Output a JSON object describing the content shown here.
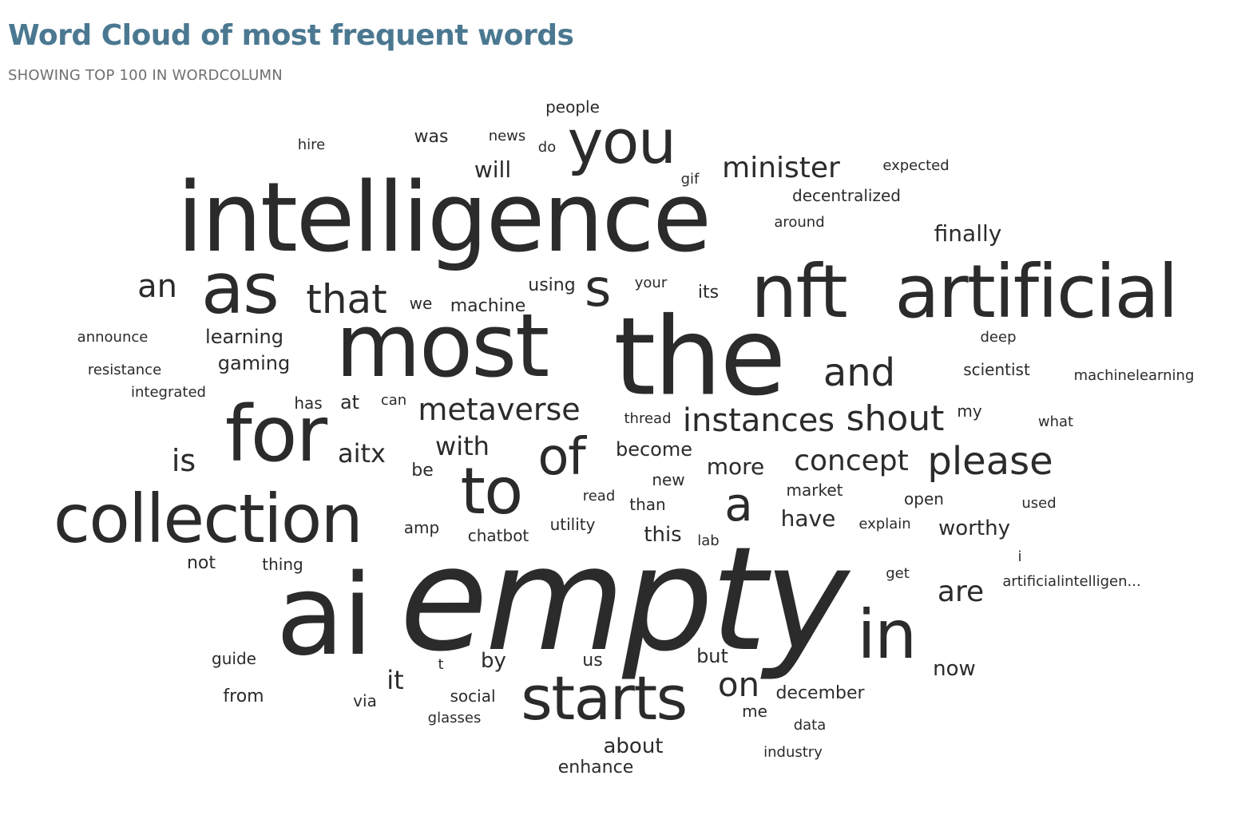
{
  "header": {
    "title": "Word Cloud of most frequent words",
    "subtitle": "SHOWING TOP 100 IN WORDCOLUMN"
  },
  "colors": {
    "title": "#4b7891",
    "subtitle": "#6f6f6f",
    "word": "#2b2b2b"
  },
  "chart_data": {
    "type": "wordcloud",
    "title": "Word Cloud of most frequent words",
    "subtitle": "SHOWING TOP 100 IN WORDCOLUMN",
    "words": [
      {
        "text": "empty",
        "rank": 1,
        "italic": true
      },
      {
        "text": "intelligence",
        "rank": 2
      },
      {
        "text": "the",
        "rank": 3
      },
      {
        "text": "most",
        "rank": 4
      },
      {
        "text": "ai",
        "rank": 5
      },
      {
        "text": "nft",
        "rank": 6
      },
      {
        "text": "artificial",
        "rank": 7
      },
      {
        "text": "for",
        "rank": 8
      },
      {
        "text": "collection",
        "rank": 9
      },
      {
        "text": "starts",
        "rank": 10
      },
      {
        "text": "as",
        "rank": 11
      },
      {
        "text": "in",
        "rank": 12
      },
      {
        "text": "you",
        "rank": 13
      },
      {
        "text": "to",
        "rank": 14
      },
      {
        "text": "of",
        "rank": 15
      },
      {
        "text": "s",
        "rank": 16
      },
      {
        "text": "a",
        "rank": 17
      },
      {
        "text": "and",
        "rank": 18
      },
      {
        "text": "that",
        "rank": 19
      },
      {
        "text": "please",
        "rank": 20
      },
      {
        "text": "shout",
        "rank": 21
      },
      {
        "text": "instances",
        "rank": 22
      },
      {
        "text": "on",
        "rank": 23
      },
      {
        "text": "an",
        "rank": 24
      },
      {
        "text": "metaverse",
        "rank": 25
      },
      {
        "text": "concept",
        "rank": 26
      },
      {
        "text": "minister",
        "rank": 27
      },
      {
        "text": "is",
        "rank": 28
      },
      {
        "text": "are",
        "rank": 29
      },
      {
        "text": "with",
        "rank": 30
      },
      {
        "text": "aitx",
        "rank": 31
      },
      {
        "text": "it",
        "rank": 32
      },
      {
        "text": "finally",
        "rank": 33
      },
      {
        "text": "more",
        "rank": 34
      },
      {
        "text": "worthy",
        "rank": 35
      },
      {
        "text": "will",
        "rank": 36
      },
      {
        "text": "have",
        "rank": 37
      },
      {
        "text": "now",
        "rank": 38
      },
      {
        "text": "gaming",
        "rank": 39
      },
      {
        "text": "learning",
        "rank": 40
      },
      {
        "text": "become",
        "rank": 41
      },
      {
        "text": "this",
        "rank": 42
      },
      {
        "text": "about",
        "rank": 43
      },
      {
        "text": "at",
        "rank": 44
      },
      {
        "text": "by",
        "rank": 45
      },
      {
        "text": "machine",
        "rank": 46
      },
      {
        "text": "decentralized",
        "rank": 47
      },
      {
        "text": "people",
        "rank": 48
      },
      {
        "text": "was",
        "rank": 49
      },
      {
        "text": "from",
        "rank": 50
      },
      {
        "text": "december",
        "rank": 51
      },
      {
        "text": "using",
        "rank": 52
      },
      {
        "text": "but",
        "rank": 53
      },
      {
        "text": "scientist",
        "rank": 54
      },
      {
        "text": "market",
        "rank": 55
      },
      {
        "text": "utility",
        "rank": 56
      },
      {
        "text": "enhance",
        "rank": 57
      },
      {
        "text": "chatbot",
        "rank": 58
      },
      {
        "text": "social",
        "rank": 59
      },
      {
        "text": "not",
        "rank": 60
      },
      {
        "text": "thing",
        "rank": 61
      },
      {
        "text": "its",
        "rank": 62
      },
      {
        "text": "we",
        "rank": 63
      },
      {
        "text": "new",
        "rank": 64
      },
      {
        "text": "than",
        "rank": 65
      },
      {
        "text": "open",
        "rank": 66
      },
      {
        "text": "via",
        "rank": 67
      },
      {
        "text": "be",
        "rank": 68
      },
      {
        "text": "us",
        "rank": 69
      },
      {
        "text": "guide",
        "rank": 70
      },
      {
        "text": "around",
        "rank": 71
      },
      {
        "text": "amp",
        "rank": 72
      },
      {
        "text": "thread",
        "rank": 73
      },
      {
        "text": "machinelearning",
        "rank": 74
      },
      {
        "text": "news",
        "rank": 75
      },
      {
        "text": "integrated",
        "rank": 76
      },
      {
        "text": "resistance",
        "rank": 77
      },
      {
        "text": "announce",
        "rank": 78
      },
      {
        "text": "expected",
        "rank": 79
      },
      {
        "text": "has",
        "rank": 80
      },
      {
        "text": "explain",
        "rank": 81
      },
      {
        "text": "used",
        "rank": 82
      },
      {
        "text": "read",
        "rank": 83
      },
      {
        "text": "deep",
        "rank": 84
      },
      {
        "text": "industry",
        "rank": 85
      },
      {
        "text": "my",
        "rank": 86
      },
      {
        "text": "what",
        "rank": 87
      },
      {
        "text": "get",
        "rank": 88
      },
      {
        "text": "artificialintelligen...",
        "rank": 89
      },
      {
        "text": "me",
        "rank": 90
      },
      {
        "text": "glasses",
        "rank": 91
      },
      {
        "text": "lab",
        "rank": 92
      },
      {
        "text": "data",
        "rank": 93
      },
      {
        "text": "hire",
        "rank": 94
      },
      {
        "text": "your",
        "rank": 95
      },
      {
        "text": "can",
        "rank": 96
      },
      {
        "text": "do",
        "rank": 97
      },
      {
        "text": "gif",
        "rank": 98
      },
      {
        "text": "t",
        "rank": 99
      },
      {
        "text": "i",
        "rank": 100
      }
    ]
  }
}
